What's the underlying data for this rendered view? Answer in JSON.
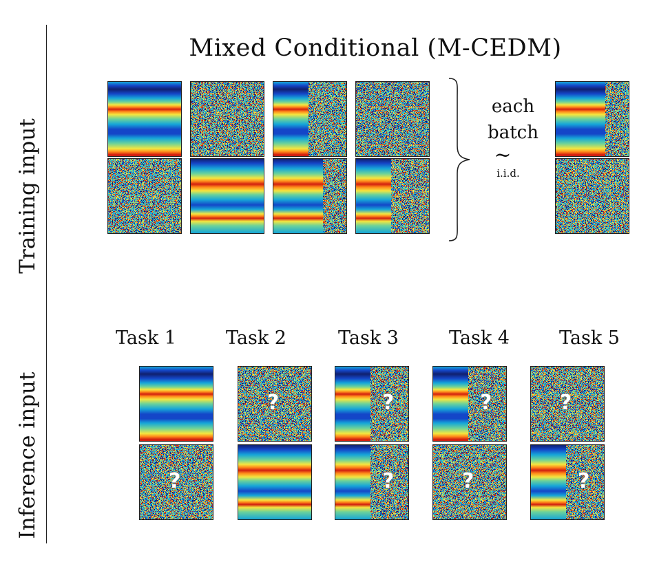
{
  "figure": {
    "title": "Mixed Conditional (M-CEDM)",
    "row_labels": {
      "training": "Training input",
      "inference": "Inference input"
    },
    "brace_text": {
      "line1": "each",
      "line2": "batch",
      "tilde": "~",
      "iid": "i.i.d."
    },
    "tasks": [
      "Task 1",
      "Task 2",
      "Task 3",
      "Task 4",
      "Task 5"
    ],
    "question_mark": "?",
    "colors": {
      "red": "#d11f10",
      "orange": "#ff8a1a",
      "yellow": "#f4e640",
      "green": "#6cd29a",
      "cyan": "#16a6d8",
      "blue": "#1446c8",
      "navy": "#10206e",
      "line": "#222222"
    }
  }
}
